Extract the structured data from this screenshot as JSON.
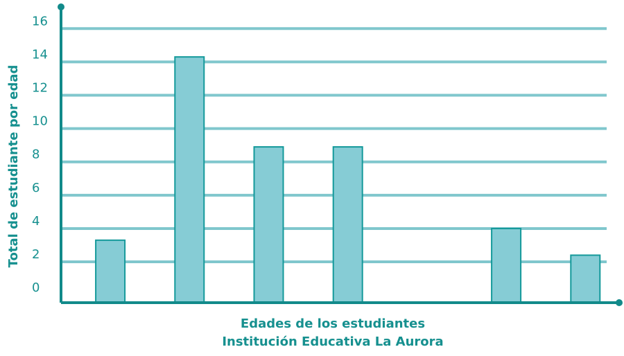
{
  "chart_data": {
    "type": "bar",
    "ylabel": "Total de estudiante por edad",
    "xlabel": [
      "Edades de los estudiantes",
      "Institución Educativa La Aurora"
    ],
    "categories": [
      null,
      null,
      null,
      null,
      null,
      null,
      null
    ],
    "values": [
      3.3,
      14.3,
      8.9,
      8.9,
      0,
      4,
      2.4
    ],
    "color": "#86ccd5",
    "ylim": [
      -0.45,
      17.3
    ],
    "yticks": [
      0,
      2,
      4,
      6,
      8,
      10,
      12,
      14,
      16
    ],
    "grid": true
  }
}
